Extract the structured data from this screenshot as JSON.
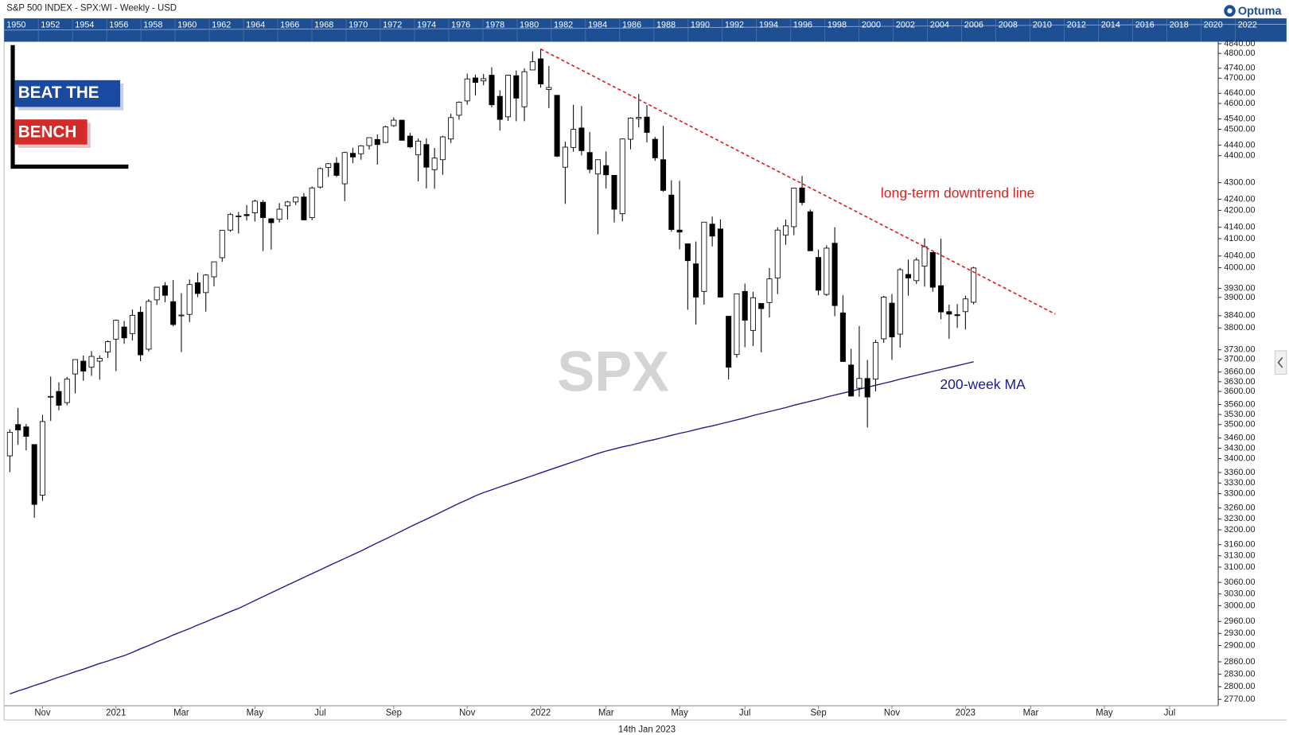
{
  "chart_data": {
    "type": "candlestick",
    "title": "S&P 500 INDEX - SPX:WI - Weekly - USD",
    "date_label": "14th Jan 2023",
    "brand": "Optuma",
    "watermark": "SPX",
    "logo": [
      "BEAT THE",
      "BENCH"
    ],
    "log_scale": true,
    "grid": false,
    "up_color": "#ffffff",
    "down_color": "#000000",
    "navigator": {
      "years": [
        1950,
        1952,
        1954,
        1956,
        1958,
        1960,
        1962,
        1964,
        1966,
        1968,
        1970,
        1972,
        1974,
        1976,
        1978,
        1980,
        1982,
        1984,
        1986,
        1988,
        1990,
        1992,
        1994,
        1996,
        1998,
        2000,
        2002,
        2004,
        2006,
        2008,
        2010,
        2012,
        2014,
        2016,
        2018,
        2020,
        2022
      ]
    },
    "categories": [
      null,
      null,
      null,
      null,
      "Nov",
      null,
      null,
      null,
      null,
      null,
      null,
      null,
      null,
      "2021",
      null,
      null,
      null,
      null,
      null,
      null,
      null,
      "Mar",
      null,
      null,
      null,
      null,
      null,
      null,
      null,
      null,
      "May",
      null,
      null,
      null,
      null,
      null,
      null,
      null,
      "Jul",
      null,
      null,
      null,
      null,
      null,
      null,
      null,
      null,
      "Sep",
      null,
      null,
      null,
      null,
      null,
      null,
      null,
      null,
      "Nov",
      null,
      null,
      null,
      null,
      null,
      null,
      null,
      null,
      "2022",
      null,
      null,
      null,
      null,
      null,
      null,
      null,
      "Mar",
      null,
      null,
      null,
      null,
      null,
      null,
      null,
      null,
      "May",
      null,
      null,
      null,
      null,
      null,
      null,
      null,
      "Jul",
      null,
      null,
      null,
      null,
      null,
      null,
      null,
      null,
      "Sep",
      null,
      null,
      null,
      null,
      null,
      null,
      null,
      null,
      "Nov",
      null,
      null,
      null,
      null,
      null,
      null,
      null,
      null,
      "2023",
      null,
      null,
      null,
      null,
      null,
      null,
      null,
      "Mar",
      null,
      null,
      null,
      null,
      null,
      null,
      null,
      null,
      "May",
      null,
      null,
      null,
      null,
      null,
      null,
      null,
      "Jul",
      null,
      null,
      null,
      null,
      null,
      null,
      null,
      null,
      null,
      null,
      null,
      null
    ],
    "open": [
      3408,
      3500,
      3493,
      3441,
      3296,
      3583,
      3600,
      3566,
      3654,
      3694,
      3675,
      3694,
      3723,
      3764,
      3803,
      3782,
      3851,
      3732,
      3892,
      3939,
      3886,
      3842,
      3844,
      3949,
      3916,
      3969,
      4034,
      4130,
      4179,
      4185,
      4191,
      4229,
      4170,
      4168,
      4216,
      4230,
      4248,
      4174,
      4284,
      4356,
      4372,
      4296,
      4409,
      4407,
      4438,
      4461,
      4450,
      4514,
      4535,
      4474,
      4403,
      4442,
      4348,
      4385,
      4463,
      4554,
      4610,
      4701,
      4689,
      4712,
      4628,
      4548,
      4710,
      4587,
      4733,
      4778,
      4655,
      4632,
      4357,
      4431,
      4505,
      4412,
      4332,
      4363,
      4327,
      4188,
      4462,
      4541,
      4547,
      4462,
      4385,
      4255,
      4130,
      4082,
      4013,
      3920,
      4151,
      4134,
      3838,
      3715,
      3920,
      3792,
      3880,
      3883,
      3965,
      4112,
      4142,
      4281,
      4195,
      4035,
      3910,
      4084,
      3849,
      3682,
      3610,
      3640,
      3638,
      3765,
      3881,
      3780,
      3977,
      3956,
      4005,
      4052,
      3939,
      3853,
      3843,
      3853,
      3884,
      null,
      null,
      null,
      null,
      null,
      null,
      null,
      null,
      null,
      null,
      null,
      null,
      null,
      null,
      null,
      null,
      null,
      null,
      null,
      null,
      null,
      null,
      null,
      null,
      null,
      null,
      null,
      null,
      null,
      null,
      null,
      null,
      null,
      null,
      null,
      null
    ],
    "high": [
      3486,
      3550,
      3502,
      3441,
      3529,
      3646,
      3628,
      3645,
      3699,
      3712,
      3726,
      3712,
      3760,
      3827,
      3823,
      3860,
      3870,
      3894,
      3934,
      3951,
      3958,
      3914,
      3960,
      3983,
      3978,
      4020,
      4129,
      4191,
      4194,
      4219,
      4238,
      4237,
      4172,
      4226,
      4234,
      4249,
      4262,
      4286,
      4356,
      4372,
      4394,
      4415,
      4430,
      4440,
      4468,
      4480,
      4513,
      4546,
      4536,
      4486,
      4465,
      4466,
      4429,
      4475,
      4560,
      4608,
      4718,
      4714,
      4717,
      4744,
      4652,
      4712,
      4731,
      4740,
      4808,
      4819,
      4749,
      4632,
      4453,
      4595,
      4590,
      4490,
      4386,
      4416,
      4327,
      4465,
      4546,
      4637,
      4594,
      4471,
      4513,
      4309,
      4307,
      4082,
      4090,
      4158,
      4178,
      4168,
      3838,
      3913,
      3946,
      3919,
      3880,
      3999,
      4140,
      4167,
      4281,
      4325,
      4203,
      4062,
      4077,
      4140,
      3907,
      3733,
      3806,
      3698,
      3762,
      3905,
      3911,
      3999,
      4028,
      4034,
      4101,
      4052,
      4100,
      3876,
      3878,
      3906,
      4003,
      null,
      null,
      null,
      null,
      null,
      null,
      null,
      null,
      null,
      null,
      null,
      null,
      null,
      null,
      null,
      null,
      null,
      null,
      null,
      null,
      null,
      null,
      null,
      null,
      null,
      null,
      null,
      null,
      null,
      null,
      null,
      null,
      null,
      null,
      null,
      null
    ],
    "low": [
      3361,
      3440,
      3424,
      3233,
      3280,
      3511,
      3543,
      3558,
      3594,
      3633,
      3648,
      3636,
      3704,
      3663,
      3749,
      3760,
      3694,
      3725,
      3875,
      3884,
      3805,
      3723,
      3819,
      3901,
      3853,
      3937,
      4020,
      4124,
      4118,
      4164,
      4160,
      4057,
      4062,
      4157,
      4167,
      4219,
      4165,
      4165,
      4279,
      4321,
      4321,
      4233,
      4372,
      4385,
      4423,
      4367,
      4448,
      4509,
      4458,
      4428,
      4305,
      4279,
      4278,
      4329,
      4448,
      4537,
      4595,
      4631,
      4672,
      4585,
      4495,
      4532,
      4531,
      4531,
      4733,
      4662,
      4582,
      4395,
      4223,
      4415,
      4401,
      4335,
      4115,
      4279,
      4157,
      4161,
      4424,
      4507,
      4450,
      4381,
      4267,
      4124,
      4063,
      3859,
      3811,
      3876,
      4073,
      3900,
      3637,
      3705,
      3738,
      3742,
      3722,
      3834,
      3911,
      4079,
      4112,
      4218,
      4057,
      3907,
      3905,
      3838,
      3693,
      3585,
      3584,
      3491,
      3600,
      3752,
      3698,
      3737,
      3906,
      3945,
      3936,
      3919,
      3828,
      3765,
      3800,
      3795,
      3877,
      null,
      null,
      null,
      null,
      null,
      null,
      null,
      null,
      null,
      null,
      null,
      null,
      null,
      null,
      null,
      null,
      null,
      null,
      null,
      null,
      null,
      null,
      null,
      null,
      null,
      null,
      null,
      null,
      null,
      null,
      null,
      null,
      null,
      null,
      null,
      null
    ],
    "close": [
      3477,
      3484,
      3465,
      3270,
      3509,
      3585,
      3558,
      3638,
      3699,
      3663,
      3709,
      3703,
      3756,
      3825,
      3768,
      3841,
      3714,
      3887,
      3934,
      3907,
      3811,
      3842,
      3943,
      3913,
      3975,
      4020,
      4129,
      4185,
      4180,
      4181,
      4233,
      4174,
      4156,
      4204,
      4230,
      4247,
      4166,
      4281,
      4352,
      4370,
      4327,
      4412,
      4395,
      4437,
      4468,
      4442,
      4509,
      4535,
      4458,
      4433,
      4455,
      4357,
      4391,
      4471,
      4545,
      4605,
      4697,
      4683,
      4698,
      4595,
      4538,
      4712,
      4621,
      4726,
      4766,
      4677,
      4663,
      4398,
      4432,
      4500,
      4419,
      4349,
      4385,
      4329,
      4204,
      4463,
      4543,
      4546,
      4488,
      4392,
      4272,
      4132,
      4123,
      4024,
      3901,
      4158,
      4109,
      3901,
      3675,
      3912,
      3825,
      3899,
      3863,
      3962,
      4130,
      4145,
      4280,
      4228,
      4058,
      3924,
      4067,
      3873,
      3693,
      3586,
      3640,
      3583,
      3753,
      3901,
      3771,
      3993,
      3965,
      4026,
      4072,
      3934,
      3852,
      3845,
      3840,
      3895,
      3999,
      null,
      null,
      null,
      null,
      null,
      null,
      null,
      null,
      null,
      null,
      null,
      null,
      null,
      null,
      null,
      null,
      null,
      null,
      null,
      null,
      null,
      null,
      null,
      null,
      null,
      null,
      null,
      null,
      null,
      null,
      null,
      null,
      null,
      null,
      null,
      null
    ],
    "ma": {
      "name": "200-week MA",
      "color": "#1c1c8a",
      "values": [
        2783,
        2790,
        2796,
        2803,
        2809,
        2816,
        2823,
        2829,
        2836,
        2842,
        2849,
        2856,
        2862,
        2869,
        2875,
        2883,
        2892,
        2900,
        2909,
        2917,
        2926,
        2934,
        2942,
        2951,
        2959,
        2968,
        2976,
        2985,
        2993,
        3003,
        3013,
        3023,
        3033,
        3043,
        3053,
        3063,
        3073,
        3083,
        3093,
        3103,
        3113,
        3123,
        3133,
        3143,
        3154,
        3165,
        3175,
        3186,
        3197,
        3208,
        3219,
        3229,
        3240,
        3251,
        3262,
        3273,
        3283,
        3294,
        3303,
        3311,
        3319,
        3327,
        3335,
        3343,
        3351,
        3359,
        3367,
        3375,
        3383,
        3391,
        3399,
        3407,
        3415,
        3422,
        3428,
        3434,
        3439,
        3445,
        3451,
        3456,
        3462,
        3468,
        3474,
        3479,
        3485,
        3491,
        3496,
        3502,
        3508,
        3514,
        3520,
        3527,
        3533,
        3539,
        3545,
        3551,
        3558,
        3564,
        3570,
        3576,
        3583,
        3589,
        3595,
        3601,
        3607,
        3613,
        3619,
        3625,
        3631,
        3638,
        3644,
        3650,
        3656,
        3662,
        3668,
        3674,
        3680,
        3686,
        3692,
        null,
        null,
        null,
        null,
        null,
        null,
        null,
        null,
        null,
        null,
        null,
        null,
        null,
        null,
        null,
        null,
        null,
        null,
        null,
        null,
        null,
        null,
        null,
        null,
        null,
        null,
        null,
        null,
        null,
        null,
        null,
        null,
        null,
        null,
        null,
        null
      ]
    },
    "trendline": {
      "name": "long-term downtrend line",
      "color": "#e02020",
      "x": [
        65,
        128
      ],
      "values": [
        4818,
        3845
      ]
    },
    "ylim": [
      2755,
      4848
    ],
    "yticks": [
      {
        "value": 4840,
        "label": "4840.00"
      },
      {
        "value": 4800,
        "label": "4800.00"
      },
      {
        "value": 4740,
        "label": "4740.00"
      },
      {
        "value": 4700,
        "label": "4700.00"
      },
      {
        "value": 4640,
        "label": "4640.00"
      },
      {
        "value": 4600,
        "label": "4600.00"
      },
      {
        "value": 4540,
        "label": "4540.00"
      },
      {
        "value": 4500,
        "label": "4500.00"
      },
      {
        "value": 4440,
        "label": "4440.00"
      },
      {
        "value": 4400,
        "label": "4400.00"
      },
      {
        "value": 4300,
        "label": "4300.00"
      },
      {
        "value": 4240,
        "label": "4240.00"
      },
      {
        "value": 4200,
        "label": "4200.00"
      },
      {
        "value": 4140,
        "label": "4140.00"
      },
      {
        "value": 4100,
        "label": "4100.00"
      },
      {
        "value": 4040,
        "label": "4040.00"
      },
      {
        "value": 4000,
        "label": "4000.00"
      },
      {
        "value": 3930,
        "label": "3930.00"
      },
      {
        "value": 3900,
        "label": "3900.00"
      },
      {
        "value": 3840,
        "label": "3840.00"
      },
      {
        "value": 3800,
        "label": "3800.00"
      },
      {
        "value": 3730,
        "label": "3730.00"
      },
      {
        "value": 3700,
        "label": "3700.00"
      },
      {
        "value": 3660,
        "label": "3660.00"
      },
      {
        "value": 3630,
        "label": "3630.00"
      },
      {
        "value": 3600,
        "label": "3600.00"
      },
      {
        "value": 3560,
        "label": "3560.00"
      },
      {
        "value": 3530,
        "label": "3530.00"
      },
      {
        "value": 3500,
        "label": "3500.00"
      },
      {
        "value": 3460,
        "label": "3460.00"
      },
      {
        "value": 3430,
        "label": "3430.00"
      },
      {
        "value": 3400,
        "label": "3400.00"
      },
      {
        "value": 3360,
        "label": "3360.00"
      },
      {
        "value": 3330,
        "label": "3330.00"
      },
      {
        "value": 3300,
        "label": "3300.00"
      },
      {
        "value": 3260,
        "label": "3260.00"
      },
      {
        "value": 3230,
        "label": "3230.00"
      },
      {
        "value": 3200,
        "label": "3200.00"
      },
      {
        "value": 3160,
        "label": "3160.00"
      },
      {
        "value": 3130,
        "label": "3130.00"
      },
      {
        "value": 3100,
        "label": "3100.00"
      },
      {
        "value": 3060,
        "label": "3060.00"
      },
      {
        "value": 3030,
        "label": "3030.00"
      },
      {
        "value": 3000,
        "label": "3000.00"
      },
      {
        "value": 2960,
        "label": "2960.00"
      },
      {
        "value": 2930,
        "label": "2930.00"
      },
      {
        "value": 2900,
        "label": "2900.00"
      },
      {
        "value": 2860,
        "label": "2860.00"
      },
      {
        "value": 2830,
        "label": "2830.00"
      },
      {
        "value": 2800,
        "label": "2800.00"
      },
      {
        "value": 2770,
        "label": "2770.00"
      }
    ]
  }
}
